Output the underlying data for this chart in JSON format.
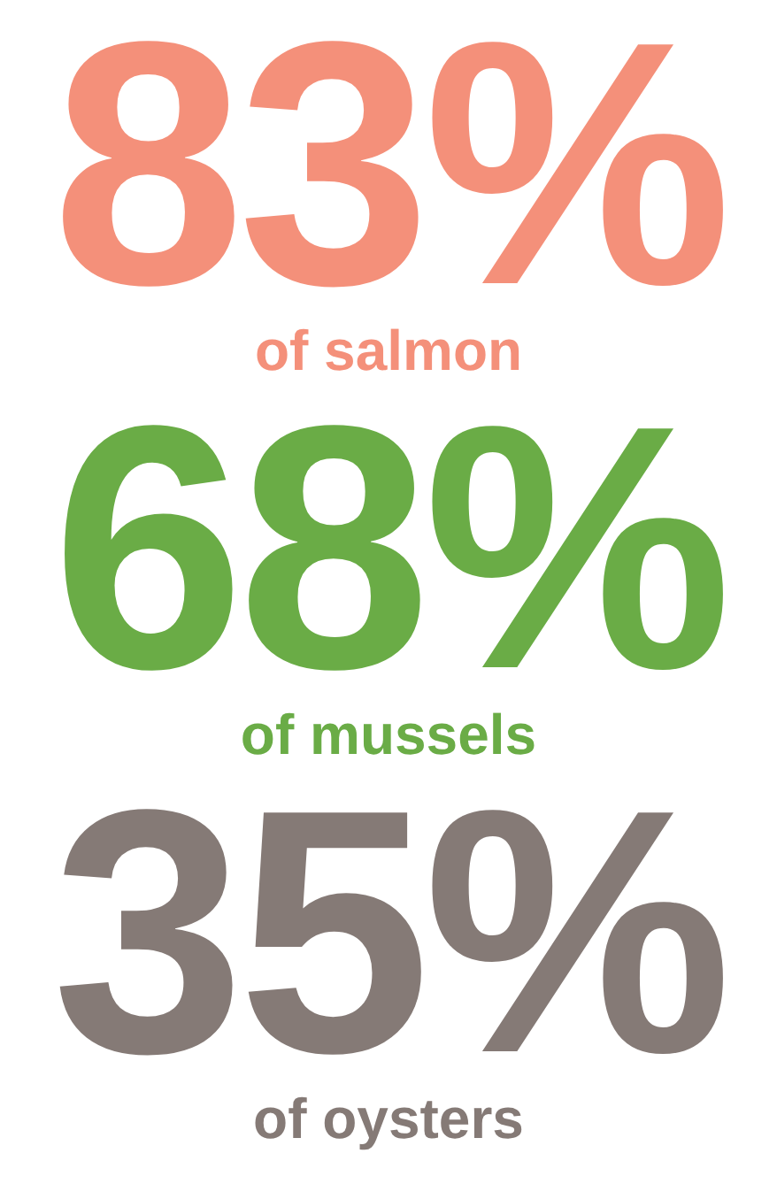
{
  "chart_data": {
    "type": "other",
    "categories": [
      "of salmon",
      "of mussels",
      "of oysters"
    ],
    "values": [
      83,
      68,
      35
    ],
    "value_labels": [
      "83%",
      "68%",
      "35%"
    ],
    "colors": [
      "#f4907a",
      "#6aac46",
      "#857a76"
    ]
  }
}
